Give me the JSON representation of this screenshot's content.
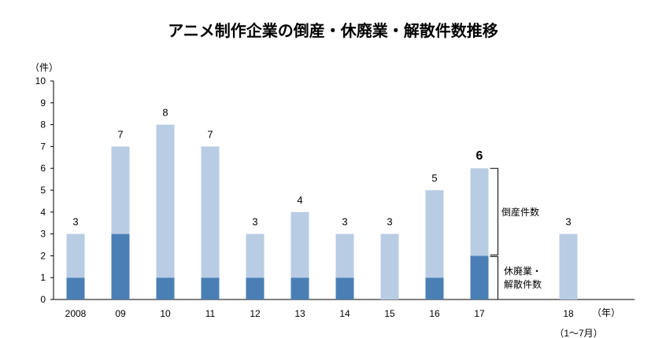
{
  "chart_data": {
    "type": "bar",
    "stacked": true,
    "title": "アニメ制作企業の倒産・休廃業・解散件数推移",
    "y_unit_label": "（件）",
    "x_unit_label": "（年）",
    "ylim": [
      0,
      10
    ],
    "y_ticks": [
      "0",
      "1",
      "2",
      "3",
      "4",
      "5",
      "6",
      "7",
      "8",
      "9",
      "10"
    ],
    "categories": [
      "2008",
      "09",
      "10",
      "11",
      "12",
      "13",
      "14",
      "15",
      "16",
      "17",
      "18"
    ],
    "last_category_note": "（1～7月）",
    "totals": [
      3,
      7,
      8,
      7,
      3,
      4,
      3,
      3,
      5,
      6,
      3
    ],
    "total_labels": [
      "3",
      "7",
      "8",
      "7",
      "3",
      "4",
      "3",
      "3",
      "5",
      "6",
      "3"
    ],
    "emphasized_index": 9,
    "series": [
      {
        "name": "休廃業・解散件数",
        "values": [
          1,
          3,
          1,
          1,
          1,
          1,
          1,
          0,
          1,
          2,
          0
        ],
        "color": "#4a7fb5"
      },
      {
        "name": "倒産件数",
        "values": [
          2,
          4,
          7,
          6,
          2,
          3,
          2,
          3,
          4,
          4,
          3
        ],
        "color": "#b8cce4"
      }
    ],
    "bracket_labels": {
      "bankruptcy": "倒産件数",
      "closure_line1": "休廃業・",
      "closure_line2": "解散件数"
    },
    "grid": false
  }
}
